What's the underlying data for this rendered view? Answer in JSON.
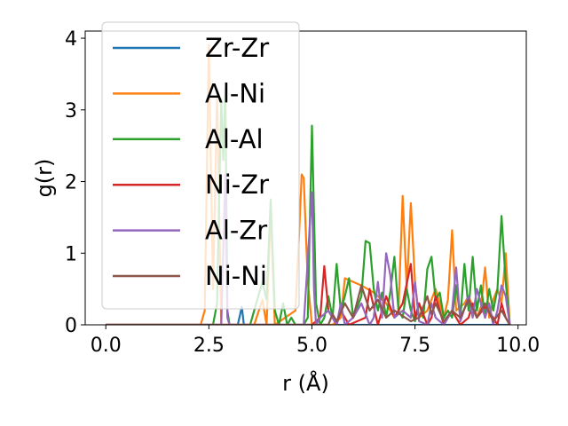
{
  "chart_data": {
    "type": "line",
    "title": "",
    "xlabel": "r (Å)",
    "ylabel": "g(r)",
    "xlim": [
      -0.5,
      10.2
    ],
    "ylim": [
      0,
      4.1
    ],
    "xticks": [
      0.0,
      2.5,
      5.0,
      7.5,
      10.0
    ],
    "xtick_labels": [
      "0.0",
      "2.5",
      "5.0",
      "7.5",
      "10.0"
    ],
    "yticks": [
      0,
      1,
      2,
      3,
      4
    ],
    "ytick_labels": [
      "0",
      "1",
      "2",
      "3",
      "4"
    ],
    "grid": false,
    "legend_position": "upper-left",
    "series": [
      {
        "name": "Zr-Zr",
        "color": "#1f77b4",
        "x": [
          0,
          3.2,
          3.3,
          3.35,
          3.4,
          3.5,
          3.6,
          4.0,
          5.0,
          6.0,
          7.0,
          8.0,
          9.0,
          9.8
        ],
        "y": [
          0,
          0,
          0.25,
          0,
          0,
          0,
          0,
          0,
          0,
          0,
          0,
          0,
          0,
          0
        ]
      },
      {
        "name": "Al-Ni",
        "color": "#ff7f0e",
        "x": [
          0,
          2.2,
          2.3,
          2.4,
          2.5,
          2.6,
          2.7,
          2.8,
          3.0,
          3.6,
          3.8,
          3.9,
          4.0,
          4.1,
          4.6,
          4.7,
          4.75,
          4.8,
          4.9,
          5.0,
          5.1,
          5.2,
          5.3,
          5.5,
          5.7,
          5.8,
          6.0,
          6.2,
          6.5,
          6.8,
          7.0,
          7.1,
          7.2,
          7.3,
          7.4,
          7.5,
          7.6,
          7.8,
          8.0,
          8.2,
          8.3,
          8.4,
          8.5,
          8.7,
          8.8,
          9.0,
          9.1,
          9.2,
          9.3,
          9.4,
          9.5,
          9.6,
          9.7,
          9.8
        ],
        "y": [
          0,
          0,
          0,
          0.2,
          3.9,
          0.5,
          3.2,
          0,
          0,
          0,
          0.35,
          0,
          1.6,
          0,
          0.2,
          1.4,
          2.1,
          2.05,
          0.6,
          0,
          0,
          0,
          0,
          0,
          0.1,
          0.65,
          0.6,
          0.55,
          0.45,
          0.3,
          0.1,
          0.2,
          1.8,
          0.5,
          1.7,
          0.6,
          0.1,
          0.2,
          0.5,
          0.1,
          0.35,
          1.32,
          0.2,
          0.3,
          0.4,
          0.1,
          0.25,
          0.8,
          0.1,
          0.35,
          0.5,
          0.3,
          1.0,
          0
        ]
      },
      {
        "name": "Al-Al",
        "color": "#2ca02c",
        "x": [
          0,
          2.6,
          2.7,
          2.8,
          2.85,
          2.9,
          2.95,
          3.0,
          3.1,
          3.5,
          3.8,
          3.9,
          4.0,
          4.1,
          4.2,
          4.3,
          4.4,
          4.5,
          4.6,
          4.8,
          4.9,
          5.0,
          5.1,
          5.2,
          5.3,
          5.4,
          5.5,
          5.6,
          5.7,
          5.8,
          5.9,
          6.0,
          6.1,
          6.2,
          6.3,
          6.4,
          6.5,
          6.6,
          6.7,
          6.8,
          6.9,
          7.0,
          7.1,
          7.2,
          7.3,
          7.4,
          7.5,
          7.6,
          7.7,
          7.8,
          7.9,
          8.0,
          8.1,
          8.2,
          8.3,
          8.4,
          8.5,
          8.6,
          8.7,
          8.8,
          8.9,
          9.0,
          9.1,
          9.2,
          9.3,
          9.4,
          9.5,
          9.6,
          9.7,
          9.8
        ],
        "y": [
          0,
          0,
          0.3,
          3.15,
          2.3,
          3.3,
          0.2,
          0,
          0,
          0,
          0.6,
          0.35,
          1.75,
          0.2,
          0,
          0.3,
          0,
          0.1,
          0,
          0,
          0.1,
          2.78,
          0.3,
          0,
          0.1,
          0.4,
          0.1,
          0.85,
          0.2,
          0.4,
          0.65,
          0.1,
          0.25,
          0.4,
          1.17,
          1.14,
          0.5,
          0.2,
          0.45,
          0.1,
          0.45,
          0.95,
          0.2,
          0.1,
          0.5,
          0.2,
          0.05,
          0.3,
          0.1,
          0.78,
          0.95,
          0.35,
          0.45,
          0.1,
          0.2,
          0.1,
          0.55,
          0.1,
          0.85,
          0.2,
          0.95,
          0.2,
          0.55,
          0.1,
          0.5,
          0.2,
          0.5,
          1.52,
          0.6,
          0
        ]
      },
      {
        "name": "Ni-Zr",
        "color": "#d62728",
        "x": [
          0,
          3.4,
          4.0,
          5.0,
          5.2,
          5.3,
          5.4,
          5.6,
          5.7,
          5.9,
          6.3,
          6.4,
          6.6,
          6.8,
          7.0,
          7.2,
          7.4,
          7.5,
          7.6,
          7.8,
          7.9,
          8.0,
          8.2,
          8.4,
          8.6,
          8.8,
          8.9,
          9.0,
          9.2,
          9.4,
          9.5,
          9.6,
          9.7,
          9.8
        ],
        "y": [
          0,
          0,
          0,
          0,
          0.1,
          0.82,
          0.2,
          0,
          0.2,
          0,
          0.1,
          0.5,
          0,
          0.4,
          0.1,
          0.3,
          0.85,
          0.1,
          0.3,
          0,
          0.1,
          0.4,
          0,
          0.2,
          0,
          0.1,
          0.3,
          0.1,
          0.25,
          0.1,
          0,
          0.3,
          0.1,
          0
        ]
      },
      {
        "name": "Al-Zr",
        "color": "#9467bd",
        "x": [
          0,
          2.7,
          2.8,
          2.9,
          2.95,
          3.0,
          3.2,
          4.0,
          4.7,
          4.8,
          4.9,
          4.95,
          5.0,
          5.05,
          5.1,
          5.2,
          5.4,
          5.6,
          5.7,
          5.8,
          6.0,
          6.2,
          6.4,
          6.5,
          6.6,
          6.7,
          6.8,
          6.9,
          7.0,
          7.2,
          7.4,
          7.5,
          7.6,
          7.8,
          7.9,
          8.0,
          8.2,
          8.4,
          8.5,
          8.6,
          8.8,
          8.9,
          9.0,
          9.2,
          9.3,
          9.4,
          9.5,
          9.6,
          9.7,
          9.8
        ],
        "y": [
          0,
          0,
          0,
          2.1,
          0.1,
          0,
          0,
          0,
          0,
          0,
          0.9,
          1.4,
          1.85,
          0.5,
          0,
          0.1,
          0.2,
          0,
          0.3,
          0,
          0.1,
          0.3,
          0,
          0.1,
          0.6,
          0.1,
          1.0,
          0.7,
          0.1,
          0.2,
          0.1,
          0.6,
          0.05,
          0,
          0.3,
          0.1,
          0,
          0.2,
          0.8,
          0.05,
          0.4,
          0.1,
          0.5,
          0.1,
          0.3,
          0,
          0.2,
          0.55,
          0.4,
          0
        ]
      },
      {
        "name": "Ni-Ni",
        "color": "#8c564b",
        "x": [
          0,
          3.8,
          4.0,
          5.0,
          5.4,
          5.5,
          5.6,
          5.8,
          6.0,
          6.2,
          6.4,
          6.6,
          6.8,
          7.0,
          7.4,
          7.6,
          7.8,
          7.9,
          8.0,
          8.2,
          8.4,
          8.6,
          8.8,
          9.0,
          9.2,
          9.4,
          9.6,
          9.8
        ],
        "y": [
          0,
          0,
          0,
          0,
          0,
          0.15,
          0.05,
          0.3,
          0.1,
          0.55,
          0.2,
          0.35,
          0.1,
          0.2,
          0.05,
          0.1,
          0.4,
          0.15,
          0.3,
          0.05,
          0.2,
          0.1,
          0.35,
          0.1,
          0.3,
          0.05,
          0.2,
          0
        ]
      }
    ]
  }
}
